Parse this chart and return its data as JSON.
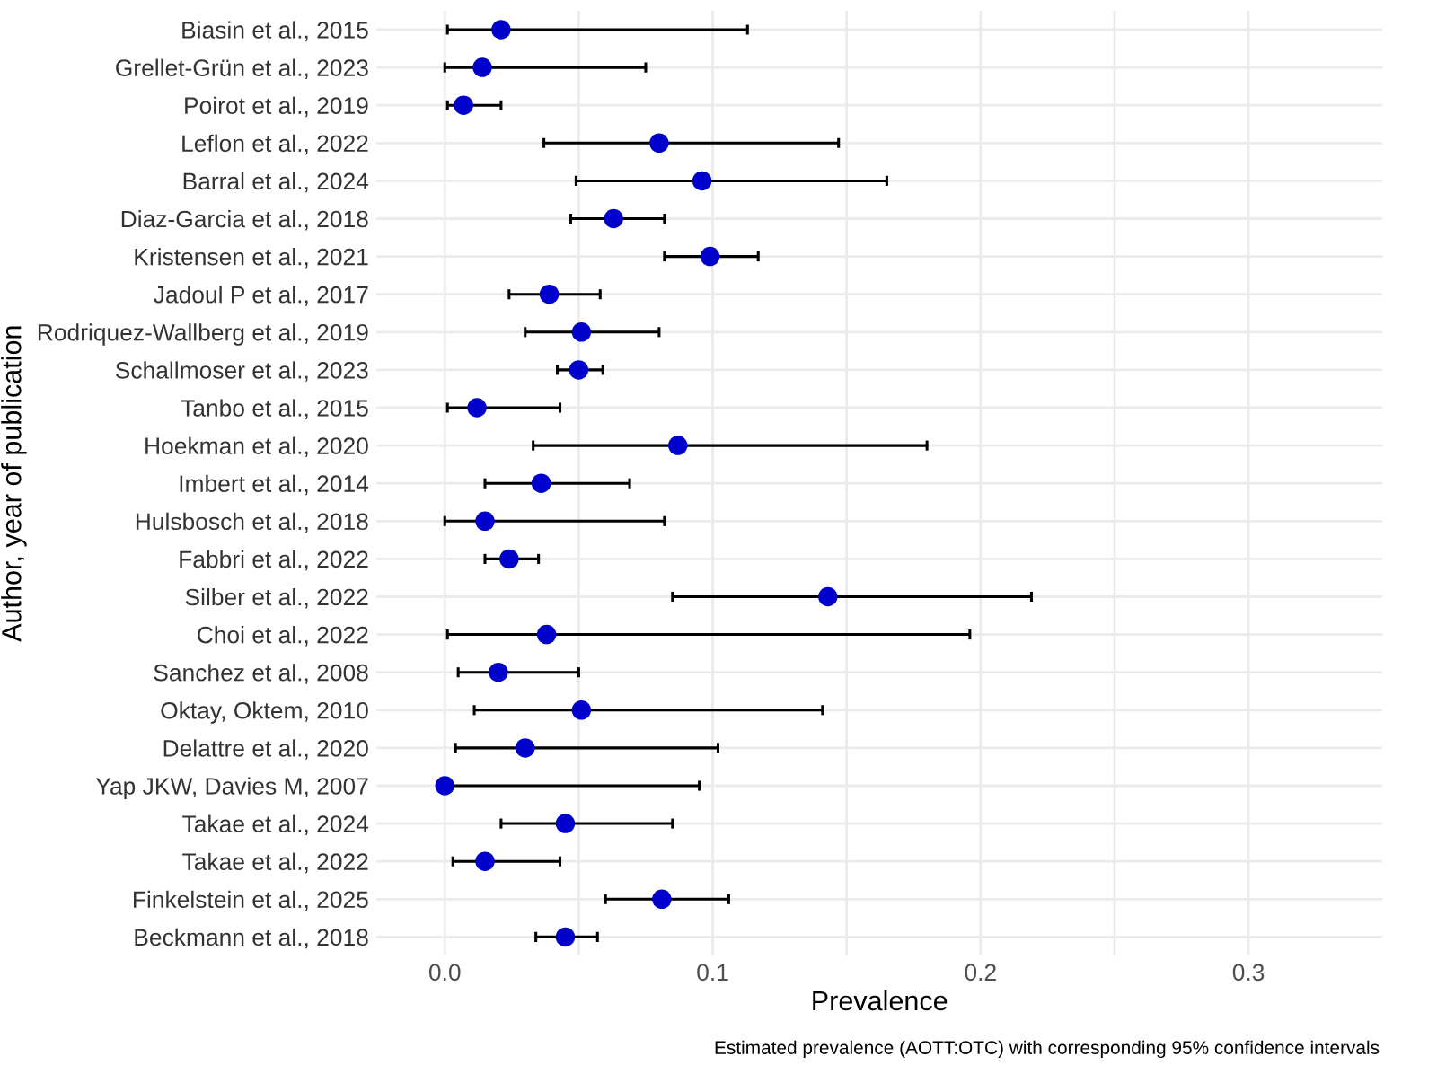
{
  "chart_data": {
    "type": "scatter",
    "orientation": "horizontal",
    "xlabel": "Prevalence",
    "ylabel": "Author, year of publication",
    "categories": [
      "Biasin et al., 2015",
      "Grellet-Grün et al., 2023",
      "Poirot et al., 2019",
      "Leflon et al., 2022",
      "Barral et al., 2024",
      "Diaz-Garcia et al., 2018",
      "Kristensen et al., 2021",
      "Jadoul P et al., 2017",
      "Rodriquez-Wallberg et al., 2019",
      "Schallmoser et al., 2023",
      "Tanbo et al., 2015",
      "Hoekman et al., 2020",
      "Imbert et al., 2014",
      "Hulsbosch et al., 2018",
      "Fabbri et al., 2022",
      "Silber et al., 2022",
      "Choi et al., 2022",
      "Sanchez et al., 2008",
      "Oktay, Oktem, 2010",
      "Delattre et al., 2020",
      "Yap JKW, Davies M, 2007",
      "Takae et al., 2024",
      "Takae et al., 2022",
      "Finkelstein et al., 2025",
      "Beckmann et al., 2018"
    ],
    "series": [
      {
        "color": "#0000cc",
        "values": [
          0.021,
          0.014,
          0.007,
          0.08,
          0.096,
          0.063,
          0.099,
          0.039,
          0.051,
          0.05,
          0.012,
          0.087,
          0.036,
          0.015,
          0.024,
          0.143,
          0.038,
          0.02,
          0.051,
          0.03,
          0.0,
          0.045,
          0.015,
          0.081,
          0.045
        ],
        "errors": [
          [
            0.001,
            0.113
          ],
          [
            0.0,
            0.075
          ],
          [
            0.001,
            0.021
          ],
          [
            0.037,
            0.147
          ],
          [
            0.049,
            0.165
          ],
          [
            0.047,
            0.082
          ],
          [
            0.082,
            0.117
          ],
          [
            0.024,
            0.058
          ],
          [
            0.03,
            0.08
          ],
          [
            0.042,
            0.059
          ],
          [
            0.001,
            0.043
          ],
          [
            0.033,
            0.18
          ],
          [
            0.015,
            0.069
          ],
          [
            0.0,
            0.082
          ],
          [
            0.015,
            0.035
          ],
          [
            0.085,
            0.219
          ],
          [
            0.001,
            0.196
          ],
          [
            0.005,
            0.05
          ],
          [
            0.011,
            0.141
          ],
          [
            0.004,
            0.102
          ],
          [
            0.0,
            0.095
          ],
          [
            0.021,
            0.085
          ],
          [
            0.003,
            0.043
          ],
          [
            0.06,
            0.106
          ],
          [
            0.034,
            0.057
          ]
        ]
      }
    ],
    "xlim": [
      -0.0255,
      0.35
    ],
    "xticks": [
      {
        "value": 0,
        "label": "0.0"
      },
      {
        "value": 0.05,
        "label": null
      },
      {
        "value": 0.1,
        "label": "0.1"
      },
      {
        "value": 0.15,
        "label": null
      },
      {
        "value": 0.2,
        "label": "0.2"
      },
      {
        "value": 0.25,
        "label": null
      },
      {
        "value": 0.3,
        "label": "0.3"
      }
    ],
    "marker": "circle",
    "grid": true,
    "legend": false,
    "annotations": [
      "Estimated prevalence (AOTT:OTC) with corresponding 95% confidence intervals"
    ]
  }
}
